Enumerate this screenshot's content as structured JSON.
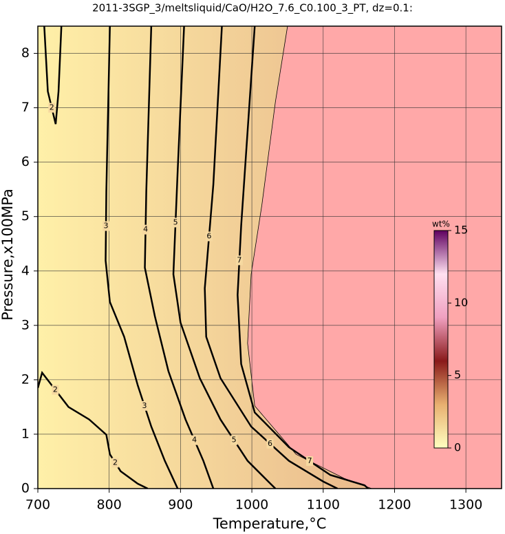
{
  "chart_data": {
    "type": "contour",
    "title": "2011-3SGP_3/meltsliquid/CaO/H2O_7.6_C0.100_3_PT, dz=0.1:",
    "xlabel": "Temperature,°C",
    "ylabel": "Pressure,x100MPa",
    "xlim": [
      700,
      1350
    ],
    "ylim": [
      0,
      8.5
    ],
    "xticks": [
      700,
      800,
      900,
      1000,
      1100,
      1200,
      1300
    ],
    "yticks": [
      0,
      1,
      2,
      3,
      4,
      5,
      6,
      7,
      8
    ],
    "grid": true,
    "solid_color": "#ffa8a8",
    "melt_colors": [
      "#fff0a8",
      "#e9b98c"
    ],
    "boundary": {
      "x": [
        1050,
        1033,
        1014,
        999,
        994,
        1004,
        1062,
        1129,
        1168
      ],
      "y": [
        8.5,
        7.11,
        5.21,
        3.94,
        2.67,
        1.52,
        0.63,
        0.19,
        0
      ]
    },
    "contours": [
      {
        "level": 2,
        "x": [
          709,
          714,
          725,
          729,
          733
        ],
        "y": [
          8.5,
          7.3,
          6.7,
          7.3,
          8.5
        ]
      },
      {
        "level": 2,
        "x": [
          700,
          706,
          743,
          772,
          796,
          801,
          816,
          840,
          854
        ],
        "y": [
          1.85,
          2.13,
          1.5,
          1.27,
          0.99,
          0.63,
          0.32,
          0.09,
          0
        ]
      },
      {
        "level": 3,
        "x": [
          801,
          796,
          795,
          801,
          821,
          840,
          859,
          878,
          896
        ],
        "y": [
          8.5,
          5.46,
          4.19,
          3.43,
          2.79,
          1.9,
          1.14,
          0.51,
          0
        ]
      },
      {
        "level": 4,
        "x": [
          859,
          852,
          850,
          864,
          883,
          907,
          932,
          946
        ],
        "y": [
          8.5,
          5.46,
          4.06,
          3.17,
          2.16,
          1.27,
          0.51,
          0
        ]
      },
      {
        "level": 5,
        "x": [
          905,
          896,
          890,
          900,
          927,
          956,
          994,
          1023,
          1033
        ],
        "y": [
          8.5,
          5.84,
          3.94,
          3.05,
          2.03,
          1.27,
          0.51,
          0.13,
          0
        ]
      },
      {
        "level": 6,
        "x": [
          958,
          946,
          934,
          936,
          956,
          999,
          1052,
          1100,
          1120
        ],
        "y": [
          8.5,
          5.59,
          3.68,
          2.79,
          2.03,
          1.14,
          0.51,
          0.13,
          0
        ]
      },
      {
        "level": 7,
        "x": [
          1004,
          985,
          980,
          985,
          1004,
          1052,
          1110,
          1158,
          1163
        ],
        "y": [
          8.5,
          4.83,
          3.56,
          2.29,
          1.4,
          0.76,
          0.25,
          0.06,
          0
        ]
      }
    ],
    "colorbar": {
      "label": "wt%",
      "lim": [
        0,
        15
      ],
      "ticks": [
        0,
        5,
        10,
        15
      ],
      "colors": [
        "#ffffc0",
        "#e8b070",
        "#8a1a1a",
        "#f0a0c0",
        "#ffe0f0",
        "#600060"
      ]
    }
  }
}
